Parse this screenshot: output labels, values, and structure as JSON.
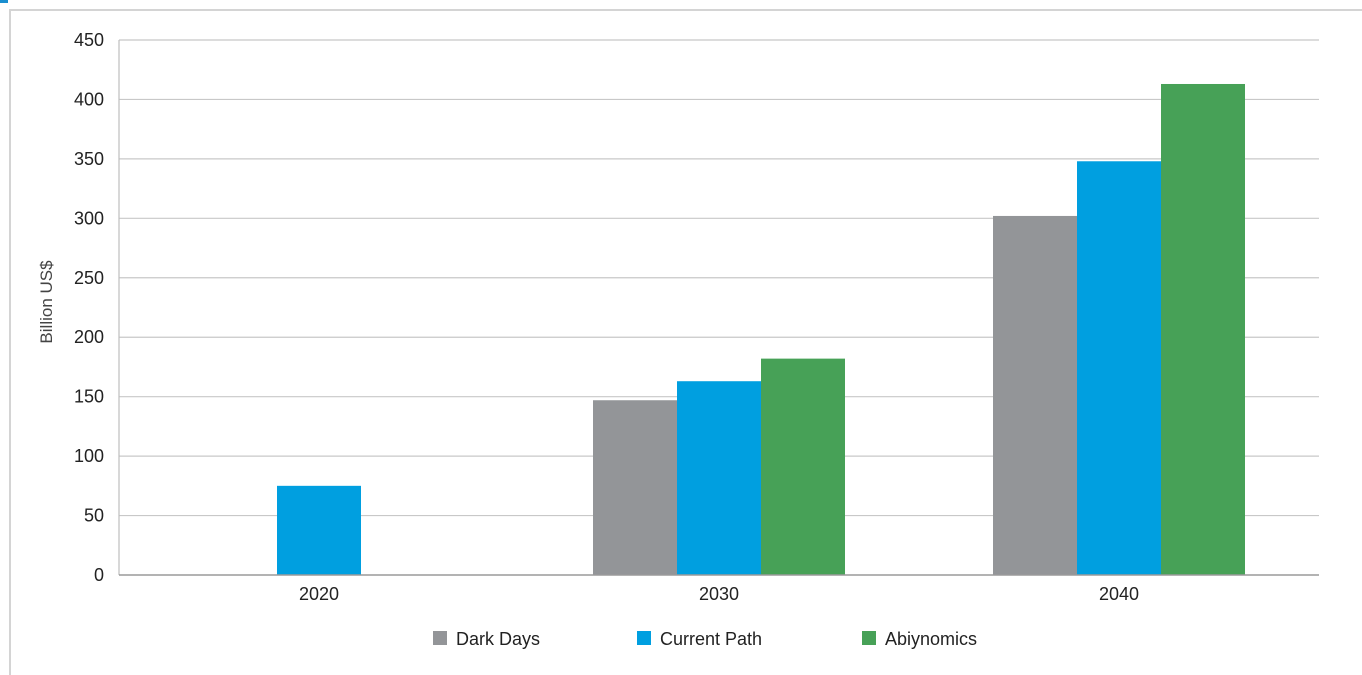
{
  "chart_data": {
    "type": "bar",
    "categories": [
      "2020",
      "2030",
      "2040"
    ],
    "series": [
      {
        "name": "Dark Days",
        "color": "#939598",
        "values": [
          null,
          147,
          302
        ]
      },
      {
        "name": "Current Path",
        "color": "#009fe0",
        "values": [
          75,
          163,
          348
        ]
      },
      {
        "name": "Abiynomics",
        "color": "#47a157",
        "values": [
          null,
          182,
          413
        ]
      }
    ],
    "ylabel": "Billion US$",
    "xlabel": "",
    "ylim": [
      0,
      450
    ],
    "yticks": [
      0,
      50,
      100,
      150,
      200,
      250,
      300,
      350,
      400,
      450
    ],
    "grid": true,
    "legend_position": "bottom"
  }
}
